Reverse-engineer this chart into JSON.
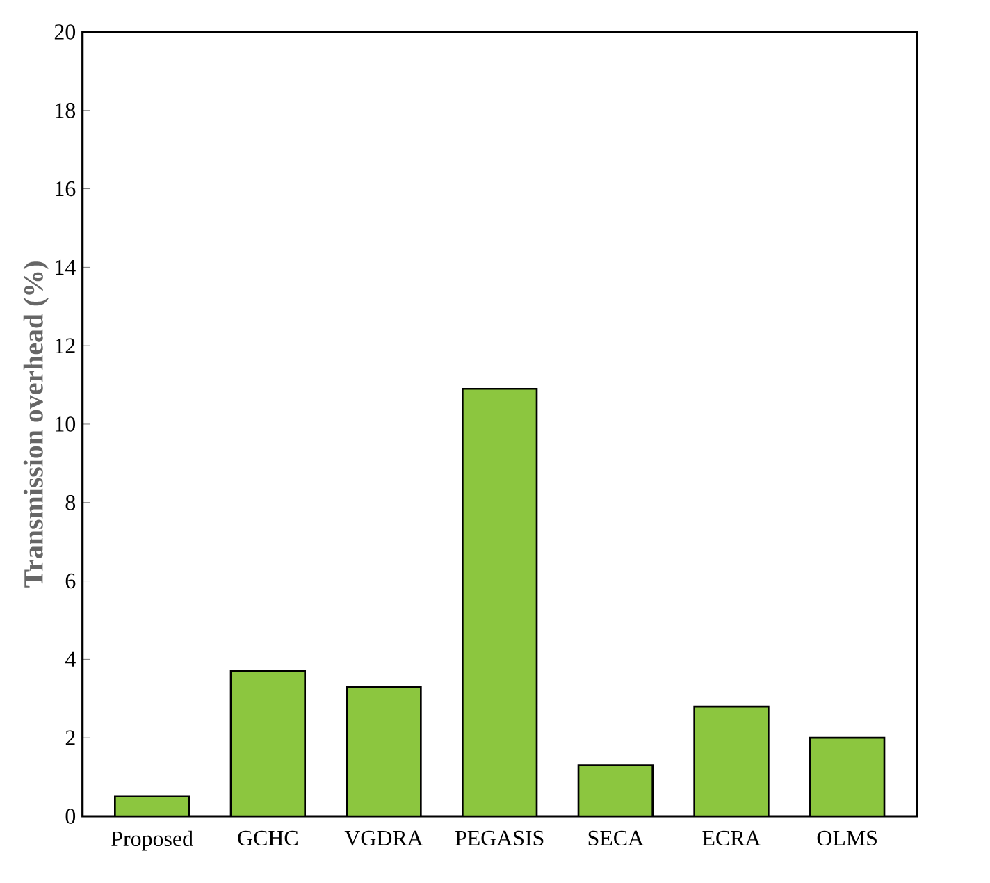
{
  "chart_data": {
    "type": "bar",
    "ylabel": "Transmission overhead (%)",
    "categories": [
      "Proposed",
      "GCHC",
      "VGDRA",
      "PEGASIS",
      "SECA",
      "ECRA",
      "OLMS"
    ],
    "values": [
      0.5,
      3.7,
      3.3,
      10.9,
      1.3,
      2.8,
      2.0
    ],
    "color": "#8cc63f",
    "ylim": [
      0,
      20
    ],
    "yticks": [
      0,
      2,
      4,
      6,
      8,
      10,
      12,
      14,
      16,
      18,
      20
    ],
    "grid": false
  }
}
